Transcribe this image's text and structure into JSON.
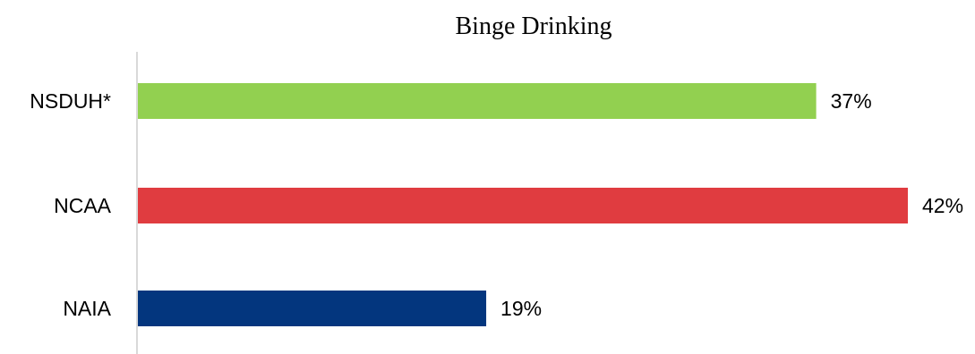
{
  "chart_data": {
    "type": "bar",
    "orientation": "horizontal",
    "title": "Binge Drinking",
    "categories": [
      "NSDUH*",
      "NCAA",
      "NAIA"
    ],
    "values": [
      37,
      42,
      19
    ],
    "data_labels": [
      "37%",
      "42%",
      "19%"
    ],
    "colors": [
      "#92d050",
      "#e03c40",
      "#03367e"
    ],
    "xlim": [
      0,
      42
    ],
    "unit": "%",
    "grid": false,
    "legend": "none",
    "axis_color": "#d9d9d9"
  }
}
